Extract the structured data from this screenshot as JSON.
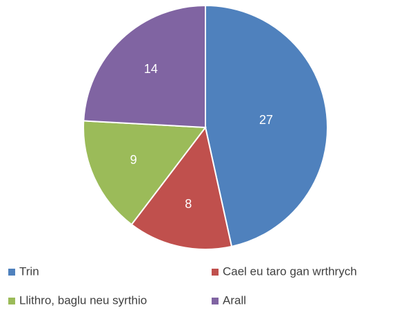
{
  "chart_data": {
    "type": "pie",
    "categories": [
      "Trin",
      "Cael eu taro gan wrthrych",
      "Llithro, baglu neu syrthio",
      "Arall"
    ],
    "values": [
      27,
      8,
      9,
      14
    ],
    "colors": [
      "#4f81bd",
      "#c0504d",
      "#9bbb59",
      "#8064a2"
    ],
    "legend": "bottom"
  }
}
